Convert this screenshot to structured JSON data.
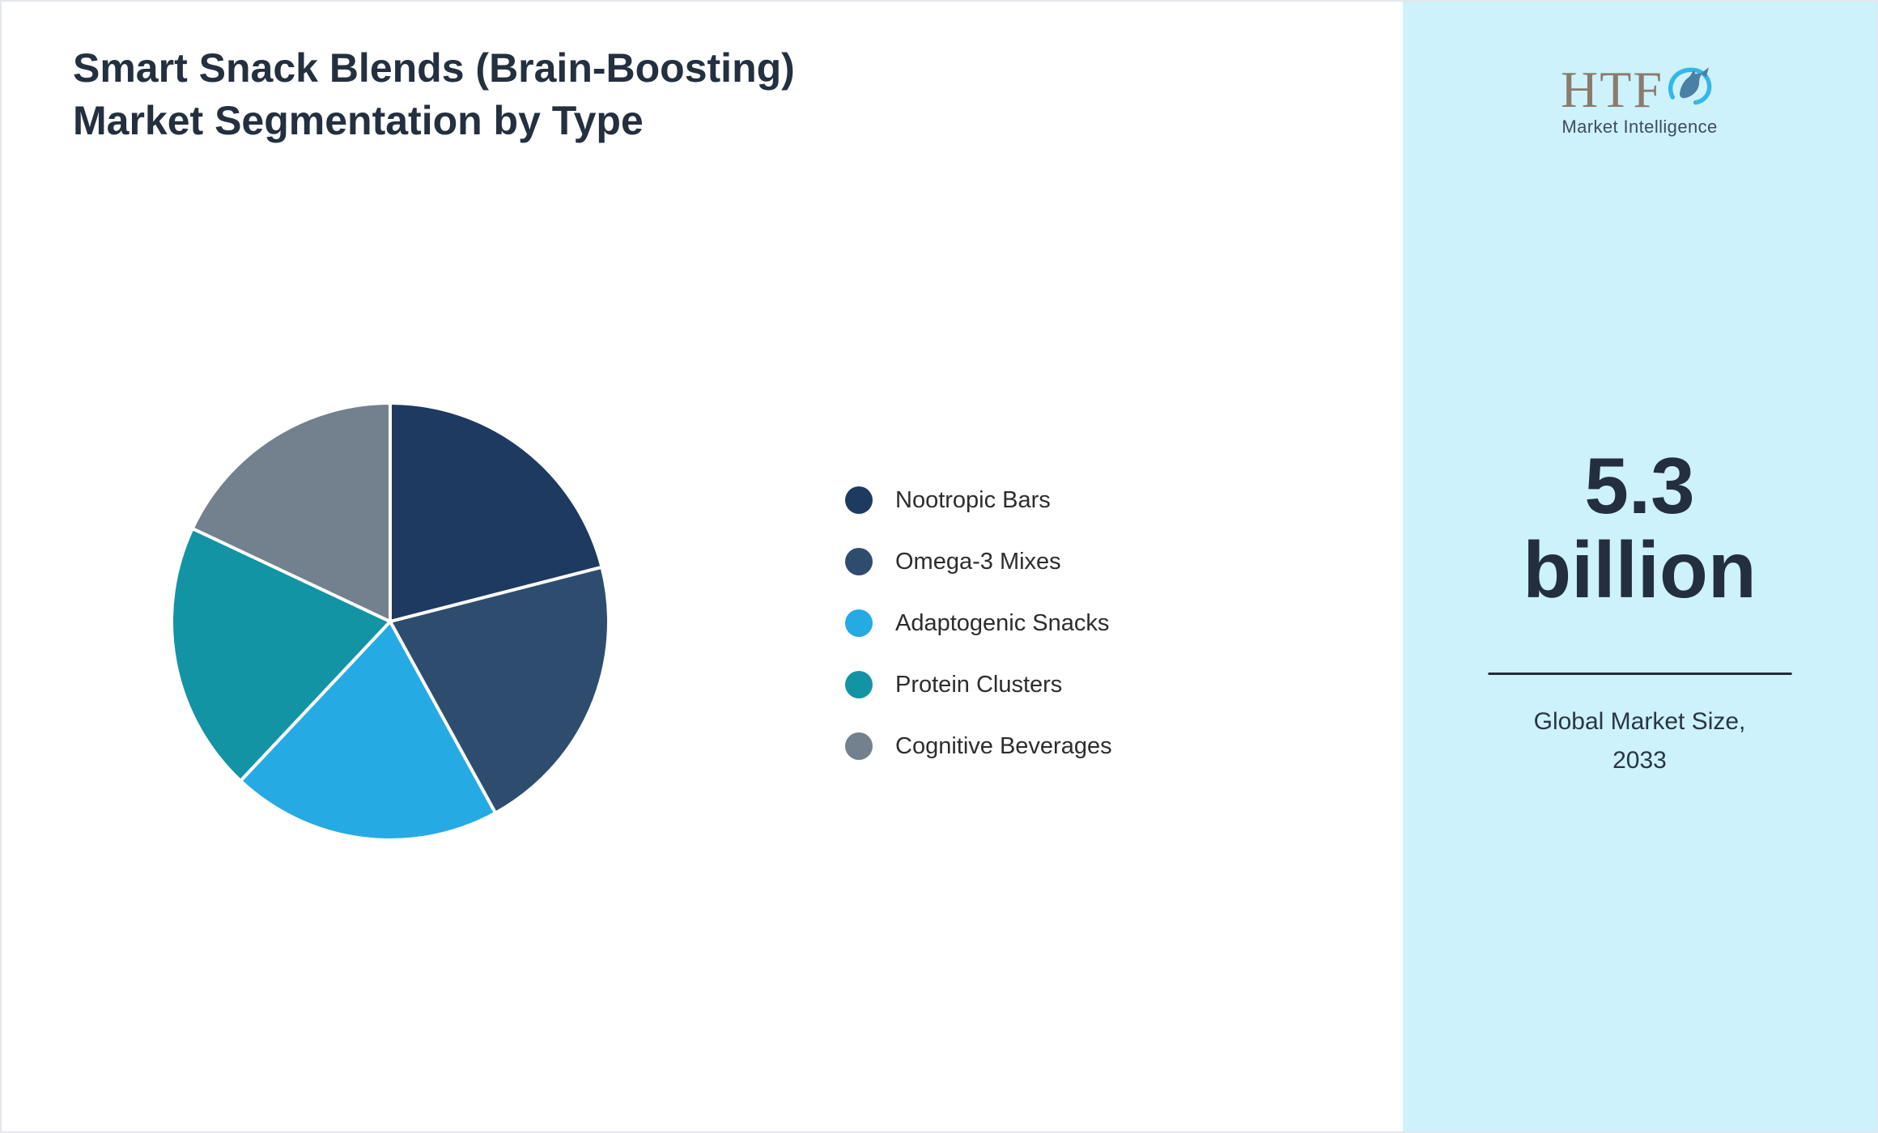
{
  "title": "Smart Snack Blends (Brain-Boosting) Market Segmentation by Type",
  "chart_data": {
    "type": "pie",
    "title": "Smart Snack Blends (Brain-Boosting) Market Segmentation by Type",
    "labels": [
      "Nootropic Bars",
      "Omega-3 Mixes",
      "Adaptogenic Snacks",
      "Protein Clusters",
      "Cognitive Beverages"
    ],
    "values": [
      21,
      21,
      20,
      20,
      18
    ],
    "colors": [
      "#1f3a60",
      "#2e4d6e",
      "#25aae3",
      "#1394a4",
      "#73808e"
    ],
    "legend_position": "right",
    "slice_border_color": "#ffffff"
  },
  "sidebar": {
    "background": "#cdf2fb",
    "logo": {
      "text": "HTF",
      "subtext": "Market Intelligence"
    },
    "value": "5.3",
    "unit": "billion",
    "label_line1": "Global Market Size,",
    "label_line2": "2033"
  }
}
